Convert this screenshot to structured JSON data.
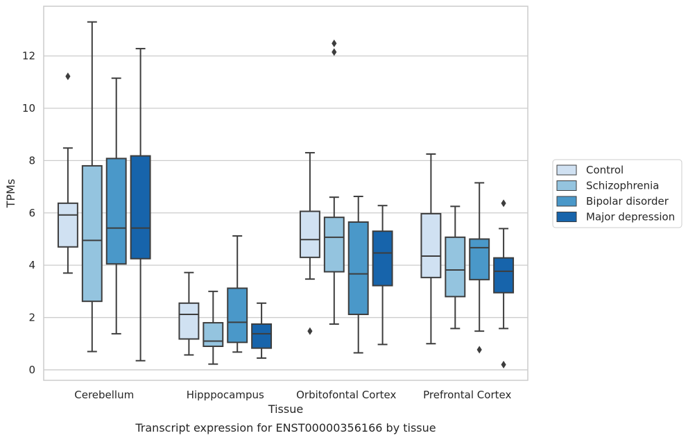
{
  "chart_data": {
    "type": "box",
    "caption": "Transcript expression for ENST00000356166 by tissue",
    "xlabel": "Tissue",
    "ylabel": "TPMs",
    "ylim": [
      -0.4,
      13.9
    ],
    "yticks": [
      0,
      2,
      4,
      6,
      8,
      10,
      12
    ],
    "ytick_labels": [
      "0",
      "2",
      "4",
      "6",
      "8",
      "10",
      "12"
    ],
    "grid": "horizontal",
    "legend_position": "right",
    "categories": [
      "Cerebellum",
      "Hipppocampus",
      "Orbitofontal Cortex",
      "Prefrontal Cortex"
    ],
    "series": [
      {
        "name": "Control",
        "color": "#d0e1f2",
        "boxes": [
          {
            "whisker_low": 3.7,
            "q1": 4.7,
            "median": 5.92,
            "q3": 6.37,
            "whisker_high": 8.48,
            "outliers": [
              11.22
            ]
          },
          {
            "whisker_low": 0.57,
            "q1": 1.18,
            "median": 2.12,
            "q3": 2.55,
            "whisker_high": 3.72,
            "outliers": []
          },
          {
            "whisker_low": 3.47,
            "q1": 4.3,
            "median": 4.98,
            "q3": 6.06,
            "whisker_high": 8.3,
            "outliers": [
              1.48
            ]
          },
          {
            "whisker_low": 1.0,
            "q1": 3.53,
            "median": 4.35,
            "q3": 5.97,
            "whisker_high": 8.25,
            "outliers": []
          }
        ]
      },
      {
        "name": "Schizophrenia",
        "color": "#94c4df",
        "boxes": [
          {
            "whisker_low": 0.7,
            "q1": 2.62,
            "median": 4.95,
            "q3": 7.8,
            "whisker_high": 13.3,
            "outliers": []
          },
          {
            "whisker_low": 0.22,
            "q1": 0.9,
            "median": 1.1,
            "q3": 1.8,
            "whisker_high": 3.0,
            "outliers": []
          },
          {
            "whisker_low": 1.75,
            "q1": 3.75,
            "median": 5.07,
            "q3": 5.83,
            "whisker_high": 6.6,
            "outliers": [
              12.15,
              12.48
            ]
          },
          {
            "whisker_low": 1.58,
            "q1": 2.8,
            "median": 3.82,
            "q3": 5.07,
            "whisker_high": 6.25,
            "outliers": []
          }
        ]
      },
      {
        "name": "Bipolar disorder",
        "color": "#4a98c9",
        "boxes": [
          {
            "whisker_low": 1.38,
            "q1": 4.05,
            "median": 5.42,
            "q3": 8.08,
            "whisker_high": 11.15,
            "outliers": []
          },
          {
            "whisker_low": 0.68,
            "q1": 1.05,
            "median": 1.82,
            "q3": 3.12,
            "whisker_high": 5.12,
            "outliers": []
          },
          {
            "whisker_low": 0.65,
            "q1": 2.12,
            "median": 3.67,
            "q3": 5.65,
            "whisker_high": 6.63,
            "outliers": []
          },
          {
            "whisker_low": 1.48,
            "q1": 3.45,
            "median": 4.67,
            "q3": 5.0,
            "whisker_high": 7.15,
            "outliers": [
              0.77
            ]
          }
        ]
      },
      {
        "name": "Major depression",
        "color": "#1764ab",
        "boxes": [
          {
            "whisker_low": 0.35,
            "q1": 4.25,
            "median": 5.42,
            "q3": 8.18,
            "whisker_high": 12.28,
            "outliers": []
          },
          {
            "whisker_low": 0.45,
            "q1": 0.83,
            "median": 1.38,
            "q3": 1.75,
            "whisker_high": 2.55,
            "outliers": []
          },
          {
            "whisker_low": 0.97,
            "q1": 3.22,
            "median": 4.47,
            "q3": 5.3,
            "whisker_high": 6.28,
            "outliers": []
          },
          {
            "whisker_low": 1.58,
            "q1": 2.95,
            "median": 3.77,
            "q3": 4.28,
            "whisker_high": 5.4,
            "outliers": [
              6.37,
              0.2
            ]
          }
        ]
      }
    ]
  }
}
